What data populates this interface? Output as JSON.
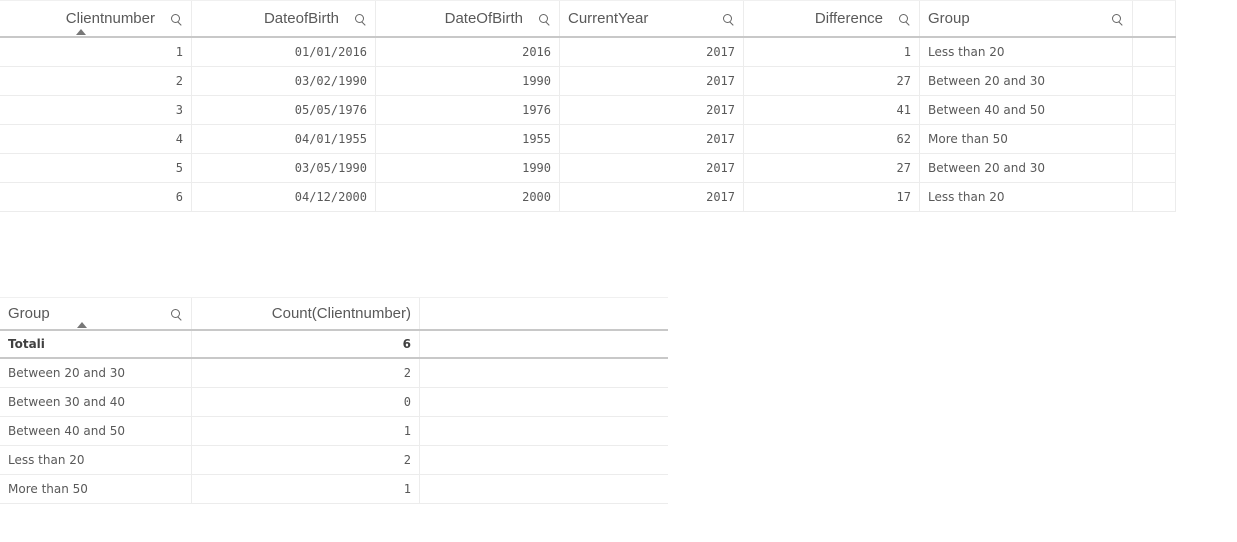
{
  "top_table": {
    "headers": [
      "Clientnumber",
      "DateofBirth",
      "DateOfBirth",
      "CurrentYear",
      "Difference",
      "Group"
    ],
    "rows": [
      [
        "1",
        "01/01/2016",
        "2016",
        "2017",
        "1",
        "Less than 20"
      ],
      [
        "2",
        "03/02/1990",
        "1990",
        "2017",
        "27",
        "Between 20 and 30"
      ],
      [
        "3",
        "05/05/1976",
        "1976",
        "2017",
        "41",
        "Between 40 and 50"
      ],
      [
        "4",
        "04/01/1955",
        "1955",
        "2017",
        "62",
        "More than 50"
      ],
      [
        "5",
        "03/05/1990",
        "1990",
        "2017",
        "27",
        "Between 20 and 30"
      ],
      [
        "6",
        "04/12/2000",
        "2000",
        "2017",
        "17",
        "Less than 20"
      ]
    ]
  },
  "bottom_table": {
    "headers": [
      "Group",
      "Count(Clientnumber)"
    ],
    "totals": {
      "label": "Totali",
      "value": "6"
    },
    "rows": [
      [
        "Between 20 and 30",
        "2"
      ],
      [
        "Between 30 and 40",
        "0"
      ],
      [
        "Between 40 and 50",
        "1"
      ],
      [
        "Less than 20",
        "2"
      ],
      [
        "More than 50",
        "1"
      ]
    ]
  }
}
